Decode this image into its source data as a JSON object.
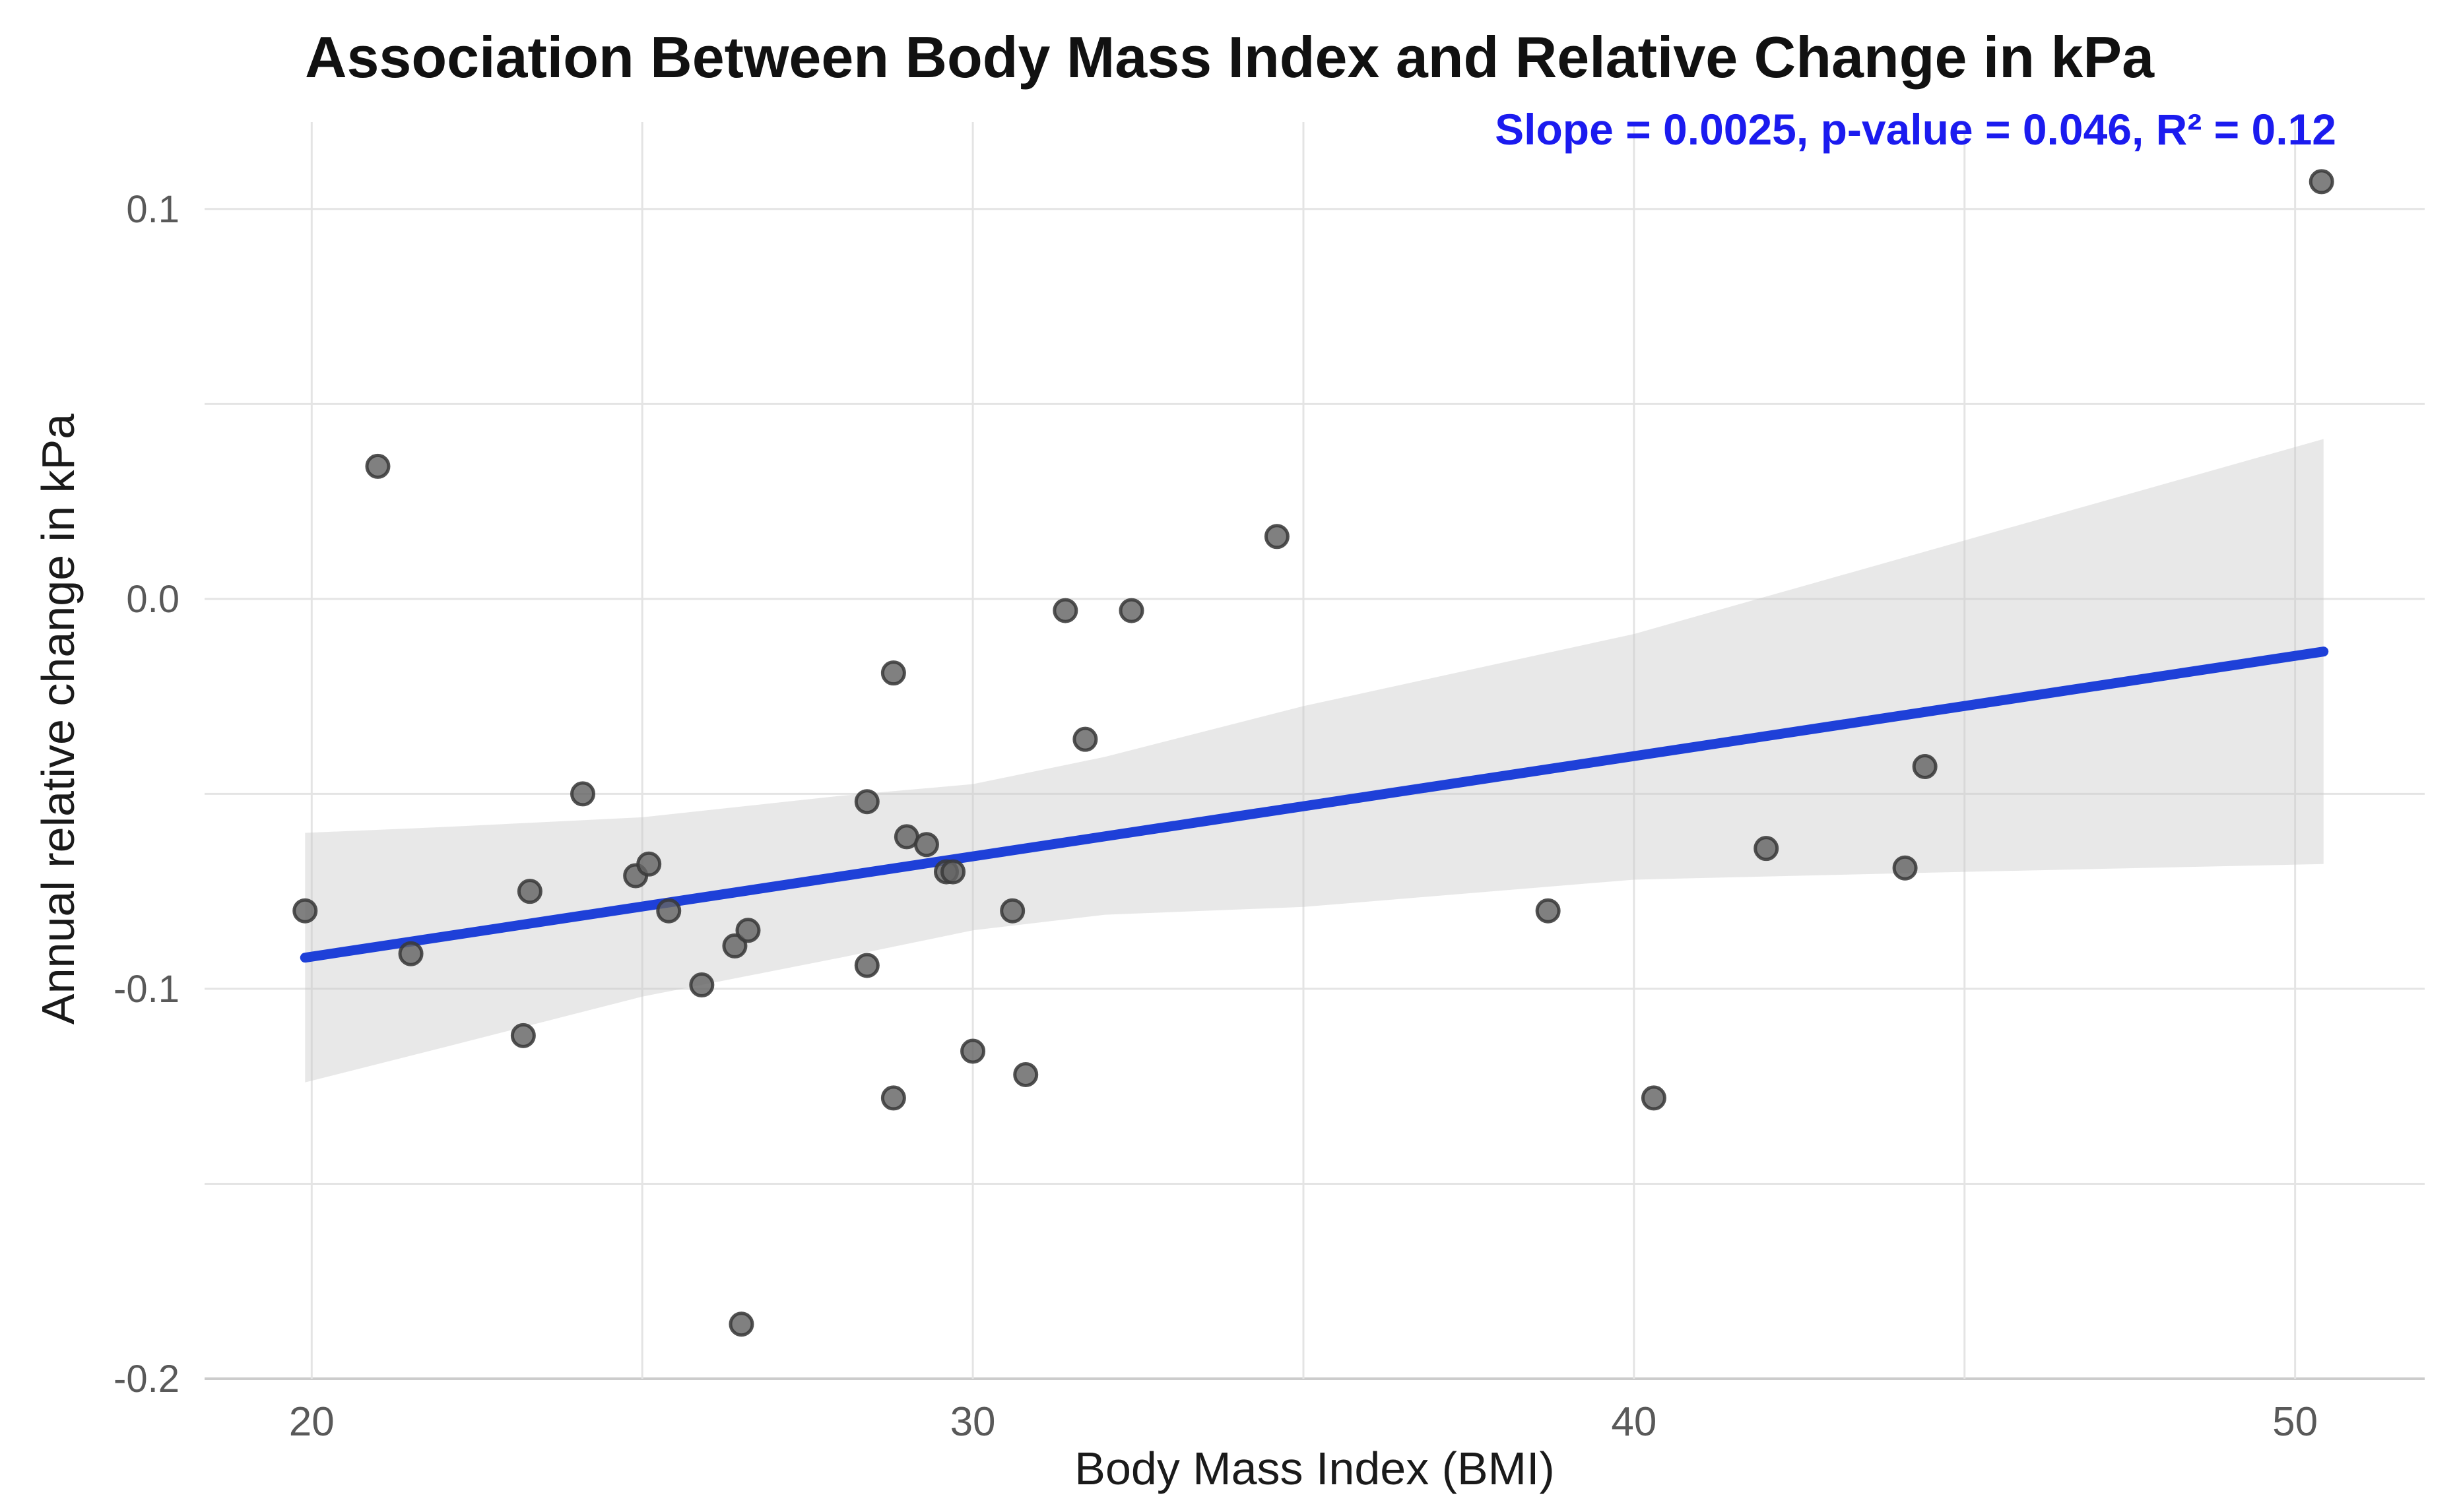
{
  "title": {
    "text": "Association Between Body Mass Index and Relative Change in kPa",
    "color": "#111111"
  },
  "annotation": {
    "text": "Slope = 0.0025, p-value = 0.046, R² = 0.12",
    "color": "#1b1bef"
  },
  "chart_data": {
    "type": "scatter",
    "title": "Association Between Body Mass Index and Relative Change in kPa",
    "xlabel": "Body Mass Index (BMI)",
    "ylabel": "Annual relative change in kPa",
    "xlim": [
      18.38,
      51.96
    ],
    "ylim": [
      -0.2,
      0.1223
    ],
    "grid": true,
    "legend_position": "none",
    "x_gridlines": [
      20,
      25,
      30,
      35,
      40,
      45,
      50
    ],
    "x_ticks_labeled": [
      20,
      30,
      40,
      50
    ],
    "x_tick_labels": [
      "20",
      "30",
      "40",
      "50"
    ],
    "y_gridlines": [
      0.1,
      0.05,
      0.0,
      -0.05,
      -0.1,
      -0.15,
      -0.2
    ],
    "y_ticks_labeled": [
      0.1,
      0.0,
      -0.1,
      -0.2
    ],
    "y_tick_labels": [
      "0.1",
      "0.0",
      "-0.1",
      "-0.2"
    ],
    "points": [
      [
        19.9,
        -0.08
      ],
      [
        21.0,
        0.034
      ],
      [
        21.5,
        -0.091
      ],
      [
        23.2,
        -0.112
      ],
      [
        23.3,
        -0.075
      ],
      [
        24.1,
        -0.05
      ],
      [
        24.9,
        -0.071
      ],
      [
        25.1,
        -0.068
      ],
      [
        25.4,
        -0.08
      ],
      [
        25.9,
        -0.099
      ],
      [
        26.4,
        -0.089
      ],
      [
        26.6,
        -0.085
      ],
      [
        26.5,
        -0.186
      ],
      [
        28.4,
        -0.094
      ],
      [
        28.4,
        -0.052
      ],
      [
        28.8,
        -0.019
      ],
      [
        28.8,
        -0.128
      ],
      [
        29.0,
        -0.061
      ],
      [
        29.3,
        -0.063
      ],
      [
        29.6,
        -0.07
      ],
      [
        29.7,
        -0.07
      ],
      [
        30.0,
        -0.116
      ],
      [
        30.6,
        -0.08
      ],
      [
        30.8,
        -0.122
      ],
      [
        31.4,
        -0.003
      ],
      [
        31.7,
        -0.036
      ],
      [
        32.4,
        -0.003
      ],
      [
        34.6,
        0.016
      ],
      [
        38.7,
        -0.08
      ],
      [
        40.3,
        -0.128
      ],
      [
        42.0,
        -0.064
      ],
      [
        44.1,
        -0.069
      ],
      [
        44.4,
        -0.043
      ],
      [
        50.4,
        0.107
      ]
    ],
    "regression_line": {
      "x_start": 19.9,
      "y_start": -0.092,
      "x_end": 50.43,
      "y_end": -0.0135,
      "slope": 0.0025,
      "p_value": 0.046,
      "r_squared": 0.12
    },
    "confidence_band": {
      "x": [
        19.9,
        22.0,
        25.0,
        28.0,
        30.0,
        32.0,
        35.0,
        40.0,
        45.0,
        50.43
      ],
      "upper": [
        -0.06,
        -0.0585,
        -0.056,
        -0.0505,
        -0.0475,
        -0.0405,
        -0.0275,
        -0.009,
        0.015,
        0.041
      ],
      "lower": [
        -0.124,
        -0.115,
        -0.102,
        -0.092,
        -0.085,
        -0.081,
        -0.079,
        -0.072,
        -0.07,
        -0.068
      ]
    },
    "colors": {
      "point_fill": "#646464",
      "point_stroke": "#3a3a3a",
      "line": "#1e40d8",
      "band": "#c8c8c8",
      "grid": "#e4e4e4",
      "axis_line": "#cccccc",
      "tick_text": "#595959",
      "axis_title": "#1a1a1a",
      "title": "#111111",
      "annotation": "#1b1bef"
    }
  }
}
